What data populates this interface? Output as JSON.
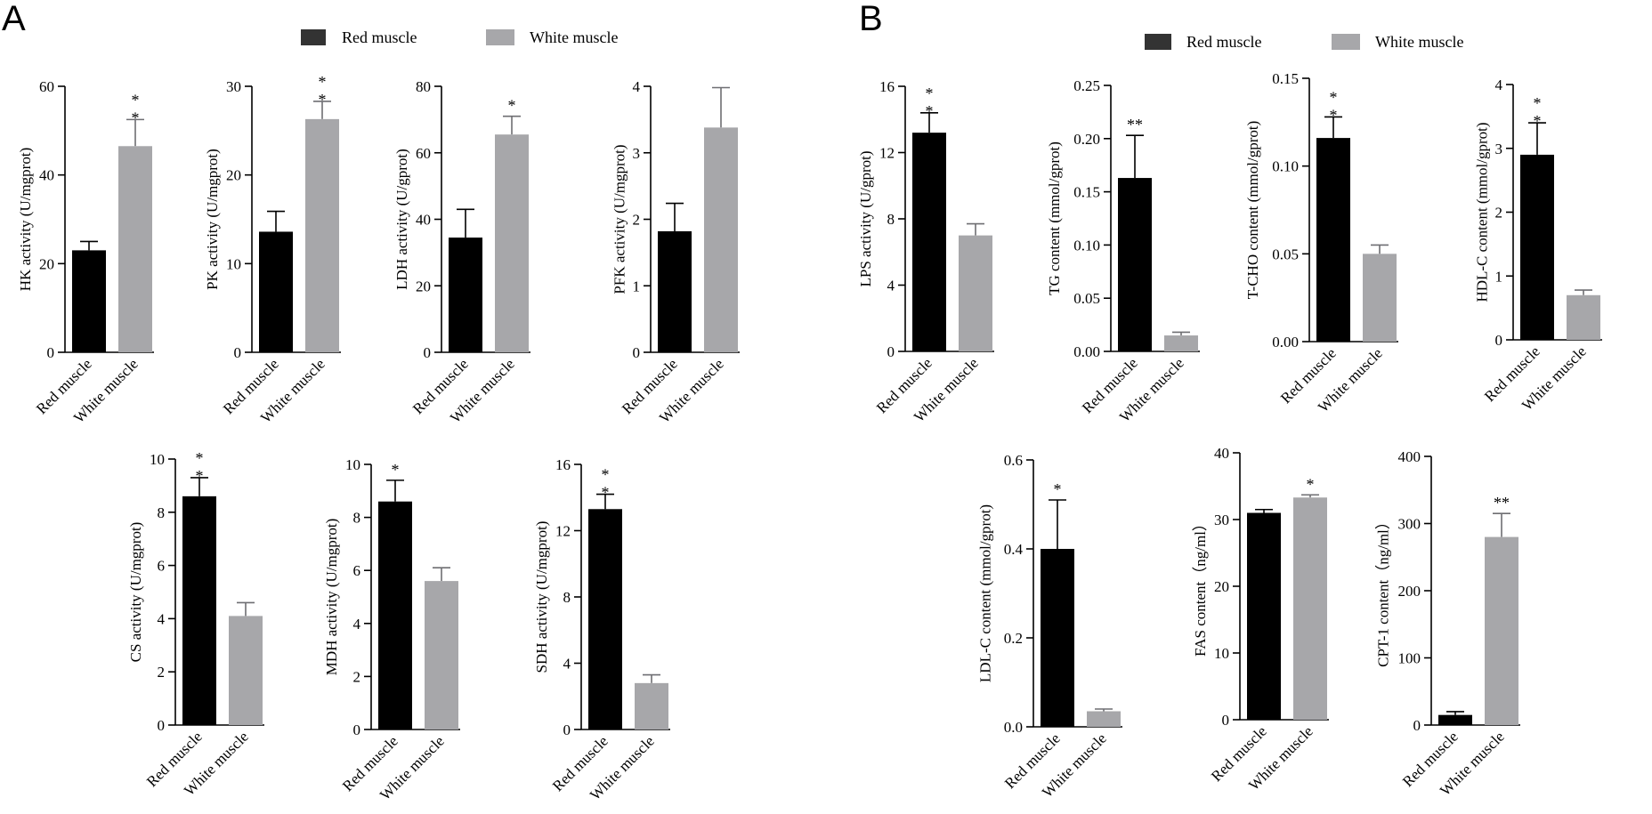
{
  "panels": [
    {
      "letter": "A"
    },
    {
      "letter": "B"
    }
  ],
  "legends": [
    {
      "red_label": "Red muscle",
      "white_label": "White muscle"
    },
    {
      "red_label": "Red muscle",
      "white_label": "White muscle"
    }
  ],
  "colors": {
    "red_bar": "#000000",
    "white_bar": "#a7a7aa",
    "axis": "#000000"
  },
  "chart_data": [
    {
      "id": "hk",
      "type": "bar",
      "ylabel": "HK activity (U/mgprot)",
      "categories": [
        "Red muscle",
        "White muscle"
      ],
      "values": [
        23,
        46.5
      ],
      "errors": [
        2,
        6
      ],
      "ylim": [
        0,
        60
      ],
      "yticks": [
        0,
        20,
        40,
        60
      ],
      "ytick_labels": [
        "0",
        "20",
        "40",
        "60"
      ],
      "significance": {
        "label": "**",
        "stacked": true
      }
    },
    {
      "id": "pk",
      "type": "bar",
      "ylabel": "PK activity (U/mgprot)",
      "categories": [
        "Red muscle",
        "White muscle"
      ],
      "values": [
        13.6,
        26.3
      ],
      "errors": [
        2.3,
        2
      ],
      "ylim": [
        0,
        30
      ],
      "yticks": [
        0,
        10,
        20,
        30
      ],
      "ytick_labels": [
        "0",
        "10",
        "20",
        "30"
      ],
      "significance": {
        "label": "**",
        "stacked": true
      }
    },
    {
      "id": "ldh",
      "type": "bar",
      "ylabel": "LDH activity (U/gprot)",
      "categories": [
        "Red muscle",
        "White muscle"
      ],
      "values": [
        34.5,
        65.5
      ],
      "errors": [
        8.5,
        5.5
      ],
      "ylim": [
        0,
        80
      ],
      "yticks": [
        0,
        20,
        40,
        60,
        80
      ],
      "ytick_labels": [
        "0",
        "20",
        "40",
        "60",
        "80"
      ],
      "significance": {
        "label": "*",
        "stacked": false
      }
    },
    {
      "id": "pfk",
      "type": "bar",
      "ylabel": "PFK activity (U/mgprot)",
      "categories": [
        "Red muscle",
        "White muscle"
      ],
      "values": [
        1.82,
        3.38
      ],
      "errors": [
        0.42,
        0.6
      ],
      "ylim": [
        0,
        4
      ],
      "yticks": [
        0,
        1,
        2,
        3,
        4
      ],
      "ytick_labels": [
        "0",
        "1",
        "2",
        "3",
        "4"
      ],
      "significance": null
    },
    {
      "id": "cs",
      "type": "bar",
      "ylabel": "CS activity (U/mgprot)",
      "categories": [
        "Red muscle",
        "White muscle"
      ],
      "values": [
        8.6,
        4.1
      ],
      "errors": [
        0.7,
        0.5
      ],
      "ylim": [
        0,
        10
      ],
      "yticks": [
        0,
        2,
        4,
        6,
        8,
        10
      ],
      "ytick_labels": [
        "0",
        "2",
        "4",
        "6",
        "8",
        "10"
      ],
      "significance": {
        "label": "**",
        "stacked": true
      }
    },
    {
      "id": "mdh",
      "type": "bar",
      "ylabel": "MDH activity (U/mgprot)",
      "categories": [
        "Red muscle",
        "White muscle"
      ],
      "values": [
        8.6,
        5.6
      ],
      "errors": [
        0.8,
        0.5
      ],
      "ylim": [
        0,
        10
      ],
      "yticks": [
        0,
        2,
        4,
        6,
        8,
        10
      ],
      "ytick_labels": [
        "0",
        "2",
        "4",
        "6",
        "8",
        "10"
      ],
      "significance": {
        "label": "*",
        "stacked": false
      }
    },
    {
      "id": "sdh",
      "type": "bar",
      "ylabel": "SDH activity (U/mgprot)",
      "categories": [
        "Red muscle",
        "White muscle"
      ],
      "values": [
        13.3,
        2.8
      ],
      "errors": [
        0.9,
        0.5
      ],
      "ylim": [
        0,
        16
      ],
      "yticks": [
        0,
        4,
        8,
        12,
        16
      ],
      "ytick_labels": [
        "0",
        "4",
        "8",
        "12",
        "16"
      ],
      "significance": {
        "label": "**",
        "stacked": true
      }
    },
    {
      "id": "lps",
      "type": "bar",
      "ylabel": "LPS activity (U/gprot)",
      "categories": [
        "Red muscle",
        "White muscle"
      ],
      "values": [
        13.2,
        7.0
      ],
      "errors": [
        1.2,
        0.7
      ],
      "ylim": [
        0,
        16
      ],
      "yticks": [
        0,
        4,
        8,
        12,
        16
      ],
      "ytick_labels": [
        "0",
        "4",
        "8",
        "12",
        "16"
      ],
      "significance": {
        "label": "**",
        "stacked": true
      }
    },
    {
      "id": "tg",
      "type": "bar",
      "ylabel": "TG content (mmol/gprot)",
      "categories": [
        "Red muscle",
        "White muscle"
      ],
      "values": [
        0.163,
        0.015
      ],
      "errors": [
        0.04,
        0.003
      ],
      "ylim": [
        0,
        0.25
      ],
      "yticks": [
        0,
        0.05,
        0.1,
        0.15,
        0.2,
        0.25
      ],
      "ytick_labels": [
        "0.00",
        "0.05",
        "0.10",
        "0.15",
        "0.20",
        "0.25"
      ],
      "significance": {
        "label": "**",
        "stacked": false
      }
    },
    {
      "id": "tcho",
      "type": "bar",
      "ylabel": "T-CHO content (mmol/gprot)",
      "categories": [
        "Red muscle",
        "White muscle"
      ],
      "values": [
        0.116,
        0.05
      ],
      "errors": [
        0.012,
        0.005
      ],
      "ylim": [
        0,
        0.15
      ],
      "yticks": [
        0,
        0.05,
        0.1,
        0.15
      ],
      "ytick_labels": [
        "0.00",
        "0.05",
        "0.10",
        "0.15"
      ],
      "significance": {
        "label": "**",
        "stacked": true
      }
    },
    {
      "id": "hdlc",
      "type": "bar",
      "ylabel": "HDL-C content (mmol/gprot)",
      "categories": [
        "Red muscle",
        "White muscle"
      ],
      "values": [
        2.9,
        0.7
      ],
      "errors": [
        0.5,
        0.08
      ],
      "ylim": [
        0,
        4
      ],
      "yticks": [
        0,
        1,
        2,
        3,
        4
      ],
      "ytick_labels": [
        "0",
        "1",
        "2",
        "3",
        "4"
      ],
      "significance": {
        "label": "**",
        "stacked": true
      }
    },
    {
      "id": "ldlc",
      "type": "bar",
      "ylabel": "LDL-C content (mmol/gprot)",
      "categories": [
        "Red muscle",
        "White muscle"
      ],
      "values": [
        0.4,
        0.035
      ],
      "errors": [
        0.11,
        0.005
      ],
      "ylim": [
        0,
        0.6
      ],
      "yticks": [
        0,
        0.2,
        0.4,
        0.6
      ],
      "ytick_labels": [
        "0.0",
        "0.2",
        "0.4",
        "0.6"
      ],
      "significance": {
        "label": "*",
        "stacked": false
      }
    },
    {
      "id": "fas",
      "type": "bar",
      "ylabel": "FAS content（ng/ml）",
      "categories": [
        "Red muscle",
        "White muscle"
      ],
      "values": [
        31,
        33.3
      ],
      "errors": [
        0.5,
        0.4
      ],
      "ylim": [
        0,
        40
      ],
      "yticks": [
        0,
        10,
        20,
        30,
        40
      ],
      "ytick_labels": [
        "0",
        "10",
        "20",
        "30",
        "40"
      ],
      "significance": {
        "label": "*",
        "stacked": false
      }
    },
    {
      "id": "cpt1",
      "type": "bar",
      "ylabel": "CPT-1 content（ng/ml）",
      "categories": [
        "Red muscle",
        "White muscle"
      ],
      "values": [
        15,
        280
      ],
      "errors": [
        5,
        35
      ],
      "ylim": [
        0,
        400
      ],
      "yticks": [
        0,
        100,
        200,
        300,
        400
      ],
      "ytick_labels": [
        "0",
        "100",
        "200",
        "300",
        "400"
      ],
      "significance": {
        "label": "**",
        "stacked": false
      }
    }
  ]
}
